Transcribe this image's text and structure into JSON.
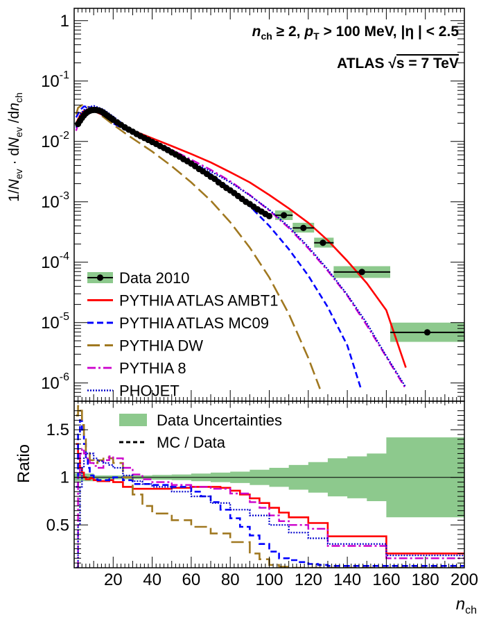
{
  "chart_data": [
    {
      "type": "line",
      "panel": "main",
      "yscale": "log",
      "xlim": [
        0,
        200
      ],
      "ylim": [
        5e-07,
        1.6
      ],
      "ylabel": "1/N_ev · dN_ev /dn_ch",
      "ylabel_parts": {
        "a": "1/",
        "b": "N",
        "c": "ev",
        "d": " · d",
        "e": "N",
        "f": "ev",
        "g": " /d",
        "h": "n",
        "i": "ch"
      },
      "y_tick_labels": [
        {
          "value": 1e-06,
          "base": "10",
          "exp": "-6"
        },
        {
          "value": 1e-05,
          "base": "10",
          "exp": "-5"
        },
        {
          "value": 0.0001,
          "base": "10",
          "exp": "-4"
        },
        {
          "value": 0.001,
          "base": "10",
          "exp": "-3"
        },
        {
          "value": 0.01,
          "base": "10",
          "exp": "-2"
        },
        {
          "value": 0.1,
          "base": "10",
          "exp": "-1"
        },
        {
          "value": 1,
          "base": "1",
          "exp": ""
        }
      ],
      "annotation_line1": {
        "a": "n",
        "b": "ch",
        "c": " ≥ 2, ",
        "d": "p",
        "e": "T",
        "f": " > 100 MeV, |η | < 2.5"
      },
      "annotation_line2": {
        "a": "ATLAS ",
        "b": "√",
        "c": "s = 7 TeV"
      },
      "legend": [
        "Data 2010",
        "PYTHIA ATLAS AMBT1",
        "PYTHIA ATLAS MC09",
        "PYTHIA DW",
        "PYTHIA 8",
        "PHOJET"
      ],
      "colors": {
        "data": "#000000",
        "band": "#8dc98d",
        "ambt1": "#ff0000",
        "mc09": "#0000ff",
        "dw": "#a07820",
        "pythia8": "#cc00cc",
        "phojet": "#0000cc"
      },
      "data_points": [
        {
          "x": 2,
          "y": 0.0195
        },
        {
          "x": 3,
          "y": 0.022
        },
        {
          "x": 4,
          "y": 0.0245
        },
        {
          "x": 5,
          "y": 0.027
        },
        {
          "x": 6,
          "y": 0.0292
        },
        {
          "x": 7,
          "y": 0.031
        },
        {
          "x": 8,
          "y": 0.0322
        },
        {
          "x": 9,
          "y": 0.033
        },
        {
          "x": 10,
          "y": 0.0332
        },
        {
          "x": 11,
          "y": 0.0332
        },
        {
          "x": 12,
          "y": 0.0328
        },
        {
          "x": 13,
          "y": 0.0322
        },
        {
          "x": 14,
          "y": 0.0312
        },
        {
          "x": 15,
          "y": 0.0298
        },
        {
          "x": 16,
          "y": 0.0283
        },
        {
          "x": 17,
          "y": 0.0268
        },
        {
          "x": 18,
          "y": 0.0254
        },
        {
          "x": 19,
          "y": 0.0241
        },
        {
          "x": 20,
          "y": 0.0229
        },
        {
          "x": 22,
          "y": 0.0207
        },
        {
          "x": 24,
          "y": 0.0188
        },
        {
          "x": 26,
          "y": 0.0171
        },
        {
          "x": 28,
          "y": 0.0157
        },
        {
          "x": 30,
          "y": 0.0145
        },
        {
          "x": 32,
          "y": 0.0133
        },
        {
          "x": 34,
          "y": 0.0123
        },
        {
          "x": 36,
          "y": 0.0114
        },
        {
          "x": 38,
          "y": 0.0106
        },
        {
          "x": 40,
          "y": 0.0098
        },
        {
          "x": 42,
          "y": 0.0091
        },
        {
          "x": 44,
          "y": 0.0084
        },
        {
          "x": 46,
          "y": 0.0078
        },
        {
          "x": 48,
          "y": 0.0072
        },
        {
          "x": 50,
          "y": 0.0066
        },
        {
          "x": 52,
          "y": 0.0061
        },
        {
          "x": 54,
          "y": 0.0056
        },
        {
          "x": 56,
          "y": 0.0051
        },
        {
          "x": 58,
          "y": 0.0047
        },
        {
          "x": 60,
          "y": 0.0043
        },
        {
          "x": 62,
          "y": 0.0039
        },
        {
          "x": 64,
          "y": 0.0035
        },
        {
          "x": 66,
          "y": 0.0032
        },
        {
          "x": 68,
          "y": 0.0029
        },
        {
          "x": 70,
          "y": 0.0026
        },
        {
          "x": 72,
          "y": 0.0024
        },
        {
          "x": 74,
          "y": 0.0021
        },
        {
          "x": 76,
          "y": 0.0019
        },
        {
          "x": 78,
          "y": 0.0017
        },
        {
          "x": 80,
          "y": 0.00155
        },
        {
          "x": 82,
          "y": 0.0014
        },
        {
          "x": 84,
          "y": 0.00125
        },
        {
          "x": 86,
          "y": 0.00112
        },
        {
          "x": 88,
          "y": 0.001
        },
        {
          "x": 90,
          "y": 0.00092
        },
        {
          "x": 92,
          "y": 0.00083
        },
        {
          "x": 94,
          "y": 0.00075
        },
        {
          "x": 96,
          "y": 0.00069
        },
        {
          "x": 98,
          "y": 0.00063
        },
        {
          "x": 100,
          "y": 0.00058
        }
      ],
      "binned_points": [
        {
          "x": 107.5,
          "xlo": 103,
          "xhi": 112,
          "y": 0.0006,
          "ylo": 0.0005,
          "yhi": 0.00072
        },
        {
          "x": 117.5,
          "xlo": 112,
          "xhi": 123,
          "y": 0.00037,
          "ylo": 0.00031,
          "yhi": 0.00045
        },
        {
          "x": 127.5,
          "xlo": 123,
          "xhi": 133,
          "y": 0.00021,
          "ylo": 0.000175,
          "yhi": 0.000255
        },
        {
          "x": 147.5,
          "xlo": 133,
          "xhi": 162,
          "y": 6.9e-05,
          "ylo": 5.5e-05,
          "yhi": 8.6e-05
        },
        {
          "x": 181,
          "xlo": 162,
          "xhi": 200,
          "y": 6.9e-06,
          "ylo": 4.8e-06,
          "yhi": 1e-05
        }
      ],
      "series": [
        {
          "name": "PYTHIA ATLAS AMBT1",
          "x": [
            1,
            3,
            5,
            7,
            10,
            15,
            20,
            25,
            30,
            40,
            50,
            60,
            70,
            80,
            90,
            100,
            110,
            120,
            130,
            140,
            150,
            160,
            170
          ],
          "y": [
            0.02,
            0.027,
            0.032,
            0.034,
            0.032,
            0.027,
            0.021,
            0.0178,
            0.0152,
            0.0113,
            0.0084,
            0.0062,
            0.0045,
            0.0031,
            0.0021,
            0.0013,
            0.00078,
            0.00045,
            0.00023,
            0.000105,
            4.5e-05,
            1.6e-05,
            1.8e-06
          ]
        },
        {
          "name": "PYTHIA ATLAS MC09",
          "x": [
            1,
            3,
            5,
            8,
            12,
            16,
            20,
            25,
            30,
            40,
            50,
            60,
            70,
            80,
            90,
            100,
            110,
            120,
            130,
            140,
            147
          ],
          "y": [
            0.025,
            0.033,
            0.038,
            0.037,
            0.032,
            0.025,
            0.02,
            0.0163,
            0.0138,
            0.0098,
            0.0069,
            0.0046,
            0.0029,
            0.00165,
            0.00085,
            0.0004,
            0.000165,
            6e-05,
            1.8e-05,
            4.2e-06,
            8e-07
          ]
        },
        {
          "name": "PYTHIA DW",
          "x": [
            1,
            2,
            4,
            6,
            8,
            12,
            16,
            20,
            25,
            30,
            40,
            50,
            60,
            70,
            80,
            90,
            100,
            110,
            120,
            126
          ],
          "y": [
            0.028,
            0.036,
            0.04,
            0.039,
            0.036,
            0.03,
            0.024,
            0.019,
            0.0145,
            0.0112,
            0.0068,
            0.0039,
            0.0021,
            0.00105,
            0.00046,
            0.000175,
            5.6e-05,
            1.4e-05,
            2.6e-06,
            8e-07
          ]
        },
        {
          "name": "PYTHIA 8",
          "x": [
            1,
            3,
            6,
            10,
            15,
            20,
            25,
            30,
            40,
            50,
            60,
            70,
            80,
            90,
            100,
            110,
            120,
            130,
            140,
            150,
            160,
            170
          ],
          "y": [
            0.015,
            0.025,
            0.033,
            0.037,
            0.032,
            0.025,
            0.019,
            0.015,
            0.0104,
            0.0073,
            0.005,
            0.0034,
            0.0022,
            0.0013,
            0.00072,
            0.00037,
            0.00017,
            7.2e-05,
            2.8e-05,
            9e-06,
            2.7e-06,
            8e-07
          ]
        },
        {
          "name": "PHOJET",
          "x": [
            1,
            3,
            6,
            10,
            15,
            20,
            25,
            30,
            40,
            50,
            60,
            70,
            80,
            90,
            100,
            110,
            120,
            130,
            140,
            150,
            160,
            170
          ],
          "y": [
            0.017,
            0.028,
            0.036,
            0.039,
            0.034,
            0.026,
            0.0195,
            0.015,
            0.0099,
            0.0067,
            0.0046,
            0.0032,
            0.0021,
            0.00128,
            0.00074,
            0.00039,
            0.00018,
            7.6e-05,
            2.9e-05,
            9.8e-06,
            2.8e-06,
            8.5e-07
          ]
        }
      ]
    },
    {
      "type": "line",
      "panel": "ratio",
      "xlim": [
        0,
        200
      ],
      "ylim": [
        0.05,
        1.8
      ],
      "xlabel": {
        "a": "n",
        "b": "ch"
      },
      "ylabel": "Ratio",
      "x_tick_labels": [
        "20",
        "40",
        "60",
        "80",
        "100",
        "120",
        "140",
        "160",
        "180",
        "200"
      ],
      "y_tick_labels": [
        "0.5",
        "1",
        "1.5"
      ],
      "legend": [
        "Data Uncertainties",
        "MC / Data"
      ],
      "band": {
        "x": [
          0,
          10,
          20,
          30,
          40,
          50,
          60,
          70,
          80,
          90,
          100,
          110,
          120,
          130,
          140,
          150,
          160,
          200
        ],
        "halfwidth": [
          0.04,
          0.02,
          0.02,
          0.02,
          0.025,
          0.03,
          0.04,
          0.05,
          0.06,
          0.08,
          0.1,
          0.13,
          0.16,
          0.2,
          0.22,
          0.25,
          0.42,
          0.42
        ]
      },
      "series": [
        {
          "name": "PYTHIA ATLAS AMBT1",
          "x": [
            1,
            2,
            3,
            4,
            5,
            6,
            8,
            10,
            12,
            15,
            18,
            20,
            25,
            30,
            40,
            50,
            60,
            70,
            75,
            80,
            85,
            90,
            95,
            100,
            105,
            110,
            115,
            120,
            125,
            130,
            135,
            140,
            150,
            160,
            175,
            200
          ],
          "y": [
            1.35,
            1.2,
            1.1,
            1.05,
            1.0,
            0.98,
            0.99,
            0.97,
            0.96,
            0.96,
            0.97,
            0.95,
            0.9,
            0.88,
            0.88,
            0.89,
            0.9,
            0.9,
            0.89,
            0.86,
            0.82,
            0.78,
            0.73,
            0.68,
            0.63,
            0.58,
            0.58,
            0.52,
            0.52,
            0.38,
            0.38,
            0.38,
            0.38,
            0.2,
            0.2,
            0.2
          ]
        },
        {
          "name": "PYTHIA ATLAS MC09",
          "x": [
            1,
            2,
            3,
            4,
            5,
            6,
            7,
            8,
            10,
            12,
            15,
            18,
            20,
            25,
            30,
            40,
            50,
            60,
            65,
            70,
            75,
            80,
            85,
            90,
            95,
            100,
            105,
            110,
            115,
            120,
            125,
            130,
            140,
            150,
            160,
            200
          ],
          "y": [
            0.9,
            1.45,
            1.6,
            1.5,
            1.35,
            1.2,
            1.1,
            1.02,
            0.98,
            0.97,
            0.97,
            0.99,
            1.0,
            0.97,
            0.93,
            0.92,
            0.9,
            0.85,
            0.8,
            0.74,
            0.66,
            0.57,
            0.48,
            0.39,
            0.3,
            0.22,
            0.15,
            0.13,
            0.11,
            0.09,
            0.08,
            0.07,
            0.07,
            0.07,
            0.07,
            0.07
          ]
        },
        {
          "name": "PYTHIA DW",
          "x": [
            1,
            2,
            3,
            4,
            5,
            6,
            8,
            10,
            12,
            15,
            18,
            20,
            25,
            30,
            35,
            40,
            50,
            60,
            70,
            80,
            90,
            95,
            100,
            105,
            110,
            120,
            200
          ],
          "y": [
            1.65,
            1.75,
            1.7,
            1.55,
            1.4,
            1.28,
            1.18,
            1.15,
            1.18,
            1.21,
            1.2,
            1.15,
            1.0,
            0.82,
            0.7,
            0.62,
            0.55,
            0.48,
            0.41,
            0.32,
            0.2,
            0.14,
            0.08,
            0.06,
            0.05,
            0.05,
            0.05
          ]
        },
        {
          "name": "PYTHIA 8",
          "x": [
            1,
            2,
            3,
            4,
            5,
            6,
            8,
            10,
            12,
            15,
            18,
            20,
            25,
            30,
            35,
            40,
            50,
            60,
            70,
            80,
            90,
            95,
            100,
            105,
            110,
            120,
            130,
            140,
            150,
            160,
            200
          ],
          "y": [
            0.05,
            1.0,
            1.25,
            1.3,
            1.25,
            1.2,
            1.15,
            1.12,
            1.1,
            1.18,
            1.22,
            1.2,
            1.1,
            1.03,
            0.98,
            0.95,
            0.92,
            0.9,
            0.88,
            0.83,
            0.74,
            0.68,
            0.6,
            0.54,
            0.5,
            0.46,
            0.28,
            0.28,
            0.28,
            0.15,
            0.15
          ]
        },
        {
          "name": "PHOJET",
          "x": [
            1,
            2,
            3,
            4,
            5,
            6,
            8,
            10,
            12,
            15,
            18,
            20,
            25,
            30,
            35,
            40,
            50,
            60,
            70,
            80,
            90,
            100,
            110,
            120,
            130,
            140,
            150,
            160,
            200
          ],
          "y": [
            0.05,
            0.5,
            0.9,
            1.1,
            1.2,
            1.25,
            1.25,
            1.2,
            1.17,
            1.15,
            1.13,
            1.1,
            1.02,
            0.96,
            0.93,
            0.9,
            0.85,
            0.8,
            0.73,
            0.66,
            0.6,
            0.5,
            0.42,
            0.36,
            0.3,
            0.3,
            0.3,
            0.18,
            0.18
          ]
        }
      ]
    }
  ]
}
